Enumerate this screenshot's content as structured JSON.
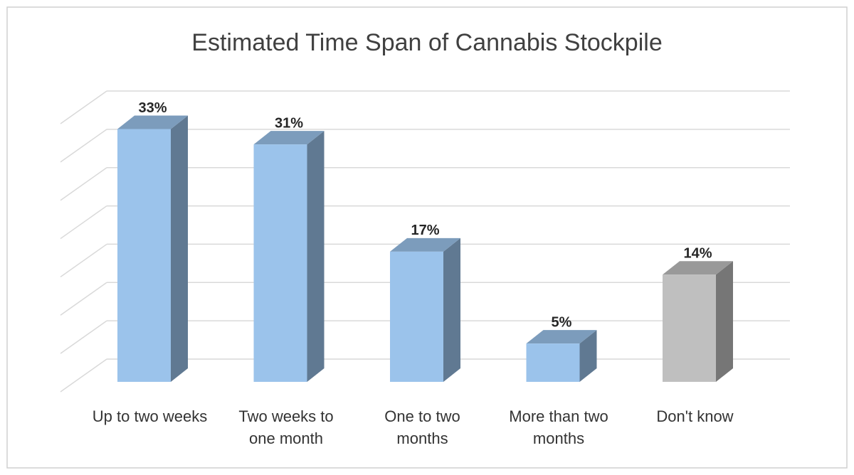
{
  "chart_data": {
    "type": "bar3d",
    "title": "Estimated Time Span of Cannabis Stockpile",
    "categories": [
      "Up to two weeks",
      "Two weeks to one month",
      "One to two months",
      "More than two months",
      "Don't know"
    ],
    "values": [
      33,
      31,
      17,
      5,
      14
    ],
    "value_labels": [
      "33%",
      "31%",
      "17%",
      "5%",
      "14%"
    ],
    "colors": [
      "#9bc3eb",
      "#9bc3eb",
      "#9bc3eb",
      "#9bc3eb",
      "#bfbfbf"
    ],
    "ylim": [
      0,
      35
    ],
    "yticks": [
      0,
      5,
      10,
      15,
      20,
      25,
      30,
      35
    ],
    "grid": true
  }
}
